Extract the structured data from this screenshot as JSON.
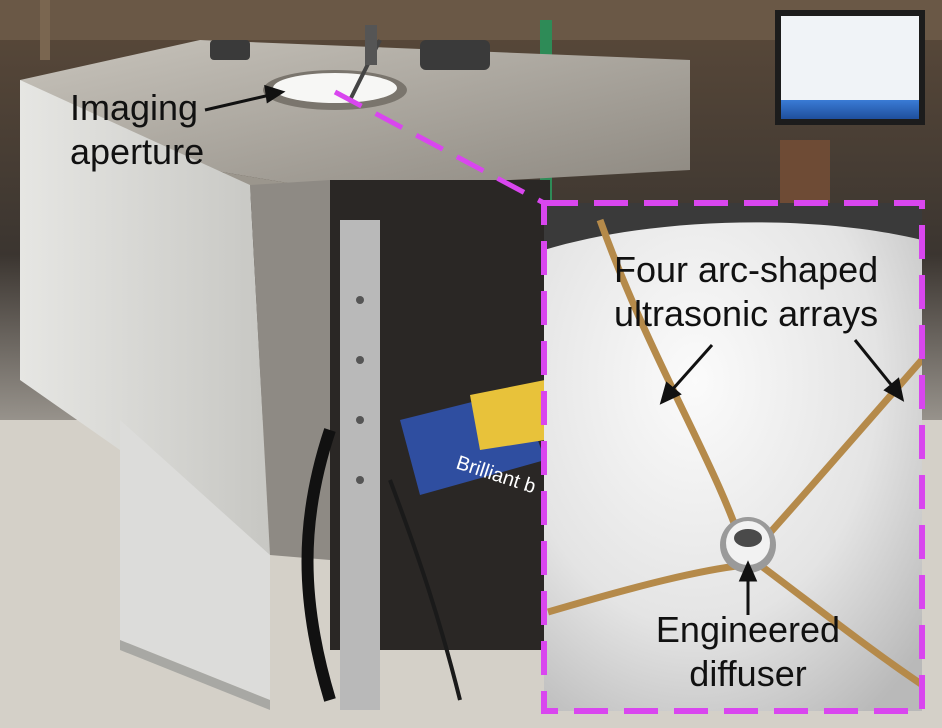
{
  "labels": {
    "aperture_line1": "Imaging",
    "aperture_line2": "aperture",
    "arrays_line1": "Four arc-shaped",
    "arrays_line2": "ultrasonic arrays",
    "diffuser_line1": "Engineered",
    "diffuser_line2": "diffuser",
    "box_brand": "Brilliant b"
  },
  "colors": {
    "callout_border": "#d946ef",
    "array_strip": "#b58a4a",
    "dome_surface": "#e9e9e9",
    "enclosure_panel": "#d9d9d6",
    "annotation_text": "#111111"
  }
}
